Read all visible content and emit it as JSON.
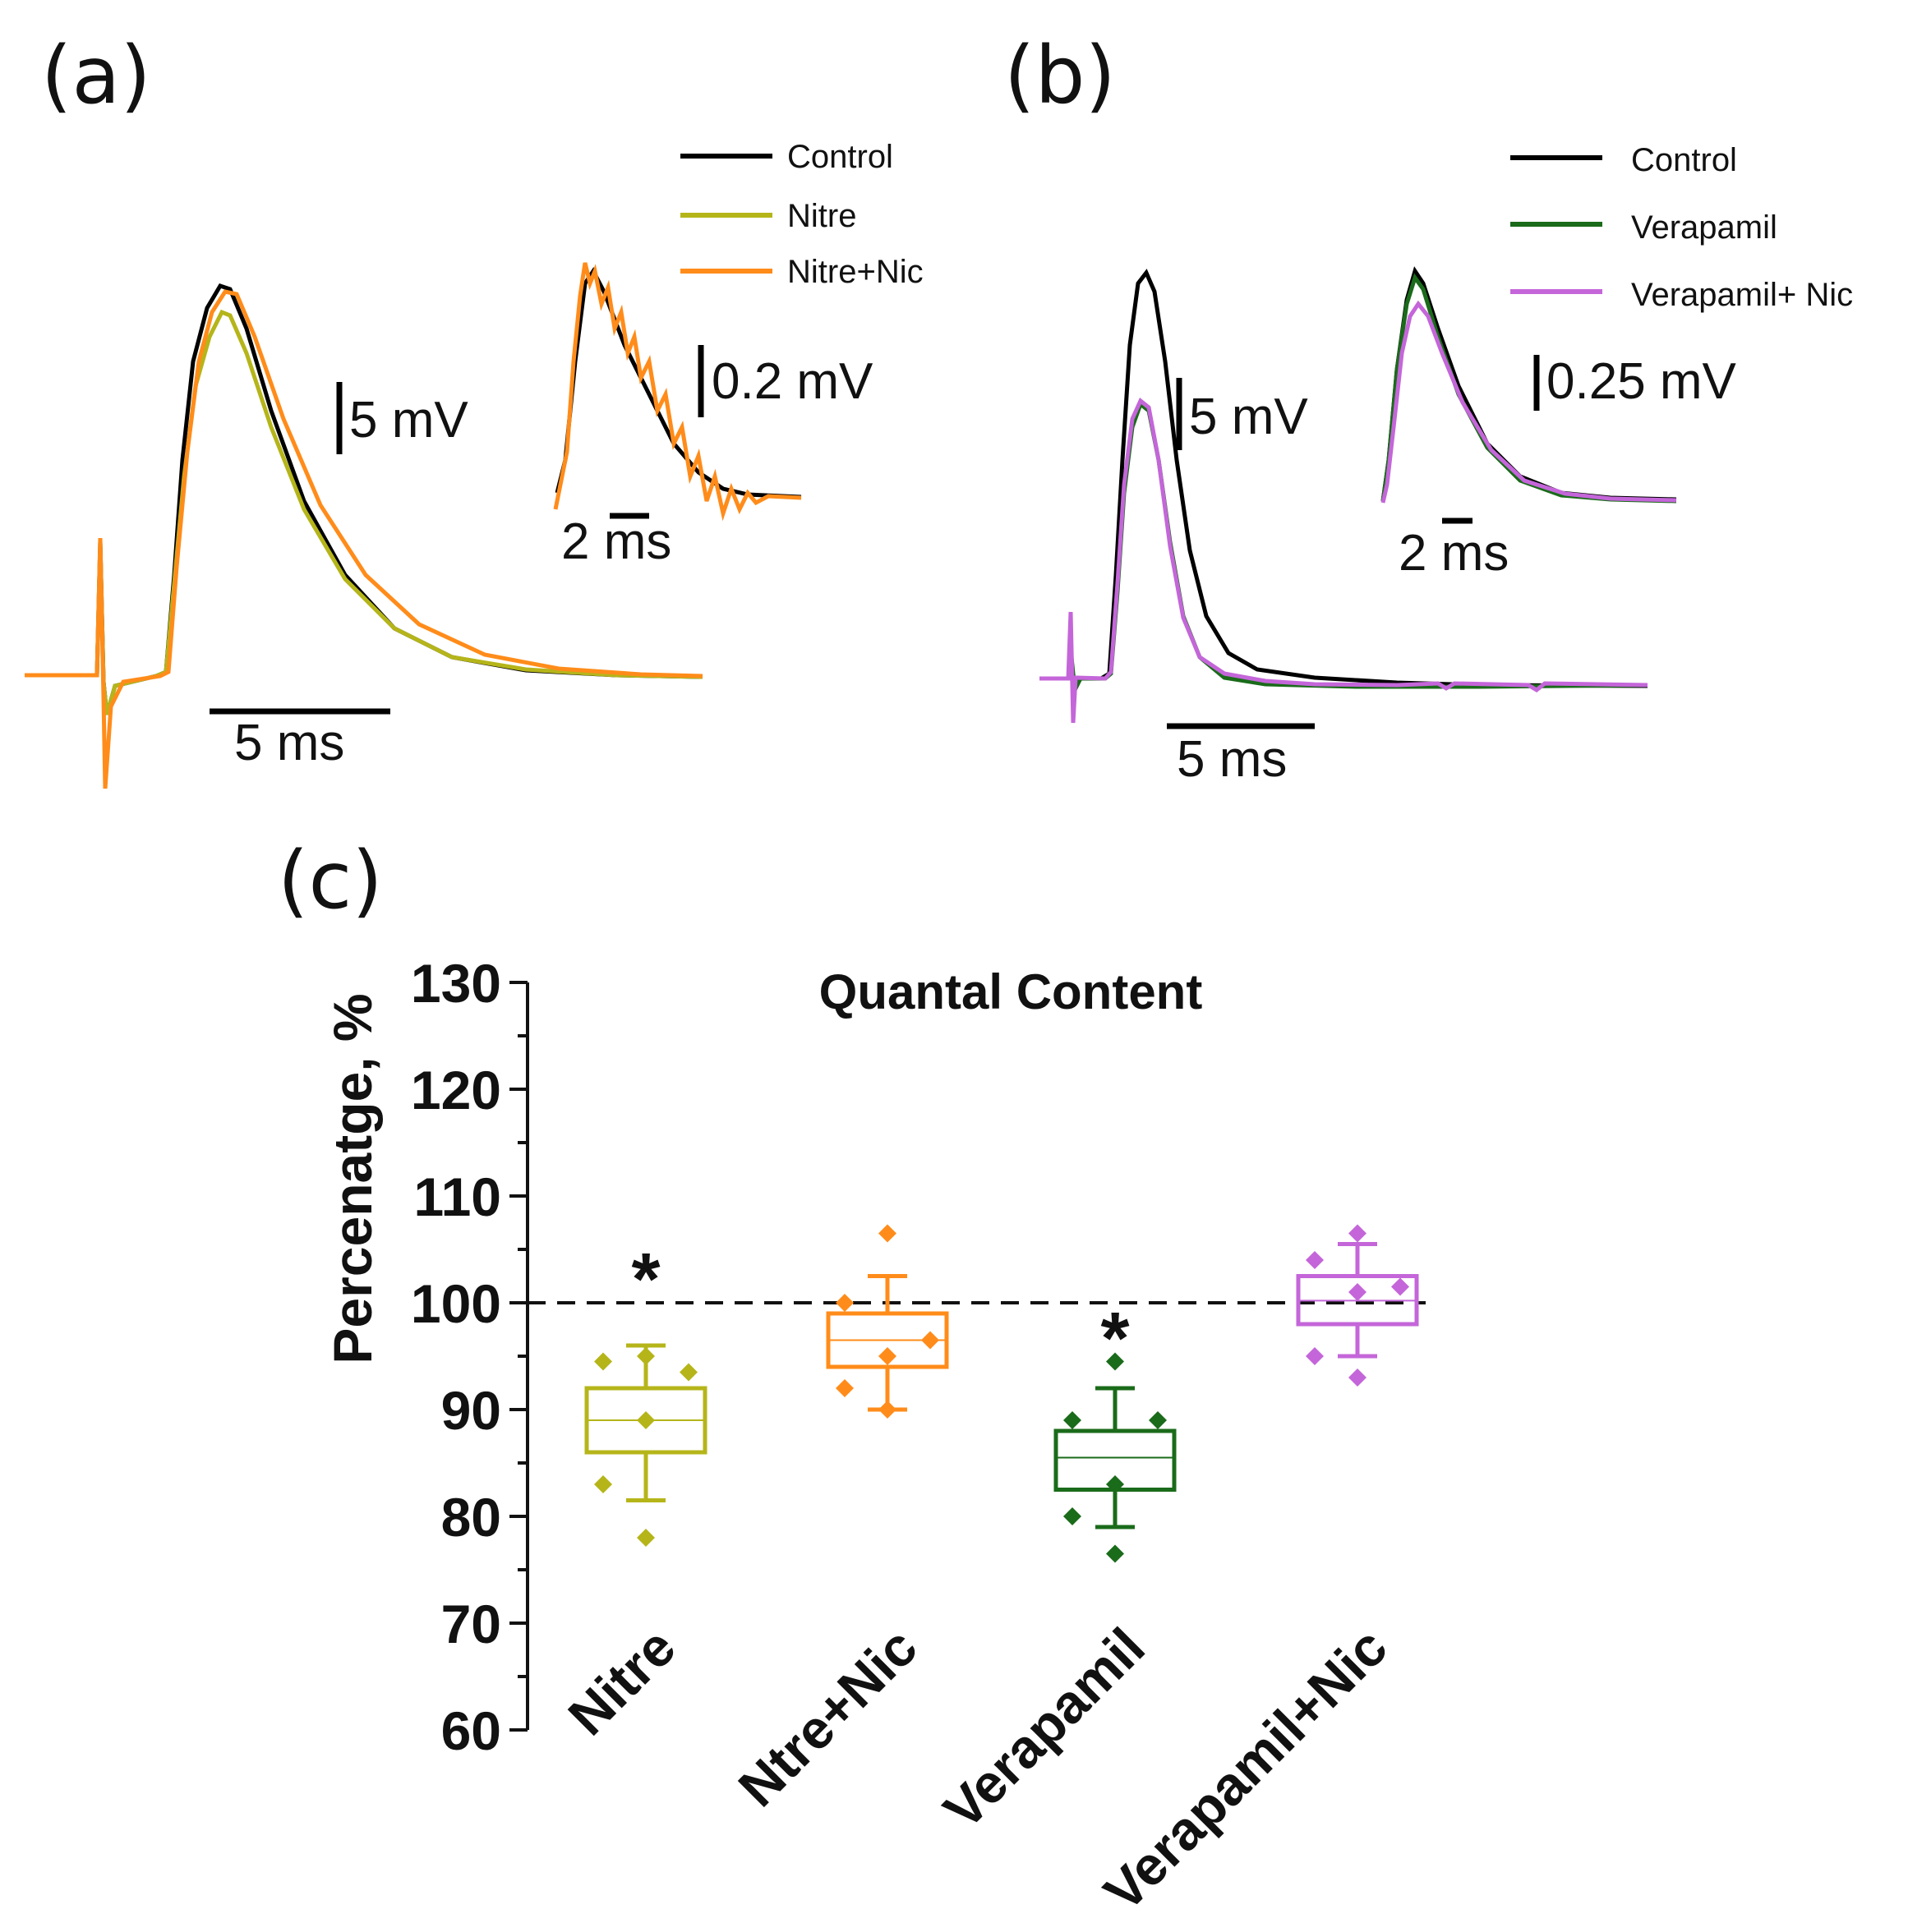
{
  "panels": {
    "a": {
      "label": "(a)",
      "legend": [
        {
          "name": "Control",
          "color": "#000000"
        },
        {
          "name": "Nitre",
          "color": "#b5b51a"
        },
        {
          "name": "Nitre+Nic",
          "color": "#ff8c1a"
        }
      ],
      "main_scale": {
        "amplitude": "5 mV",
        "time": "5 ms"
      },
      "inset_scale": {
        "amplitude": "0.2 mV",
        "time": "2 ms"
      }
    },
    "b": {
      "label": "(b)",
      "legend": [
        {
          "name": "Control",
          "color": "#000000"
        },
        {
          "name": "Verapamil",
          "color": "#1a6b1a"
        },
        {
          "name": "Verapamil+ Nic",
          "color": "#c466d9"
        }
      ],
      "main_scale": {
        "amplitude": "5 mV",
        "time": "5 ms"
      },
      "inset_scale": {
        "amplitude": "0.25 mV",
        "time": "2 ms"
      }
    },
    "c": {
      "label": "(c)"
    }
  },
  "chart_data": {
    "type": "box",
    "title": "Quantal Content",
    "ylabel": "Percenatge, %",
    "xlabel": "",
    "ylim": [
      60,
      130
    ],
    "yticks": [
      60,
      70,
      80,
      90,
      100,
      110,
      120,
      130
    ],
    "reference_line": 100,
    "categories": [
      "Nitre",
      "Ntre+Nic",
      "Verapamil",
      "Verapamil+Nic"
    ],
    "colors": [
      "#b5b51a",
      "#ff8c1a",
      "#1a6b1a",
      "#c466d9"
    ],
    "boxes": [
      {
        "q1": 86,
        "median": 89,
        "q3": 92,
        "whisker_low": 81.5,
        "whisker_high": 96,
        "significant": true,
        "points": [
          95,
          94.5,
          93.5,
          89,
          83,
          78
        ]
      },
      {
        "q1": 94,
        "median": 96.5,
        "q3": 99,
        "whisker_low": 90,
        "whisker_high": 102.5,
        "significant": false,
        "points": [
          106.5,
          100,
          96.5,
          95,
          92,
          90
        ]
      },
      {
        "q1": 82.5,
        "median": 85.5,
        "q3": 88,
        "whisker_low": 79,
        "whisker_high": 92,
        "significant": true,
        "points": [
          94.5,
          89,
          89,
          83,
          80,
          76.5
        ]
      },
      {
        "q1": 98,
        "median": 100.2,
        "q3": 102.5,
        "whisker_low": 95,
        "whisker_high": 105.5,
        "significant": false,
        "points": [
          106.5,
          104,
          101.5,
          101,
          95,
          93
        ]
      }
    ],
    "significance_marker": "*"
  }
}
